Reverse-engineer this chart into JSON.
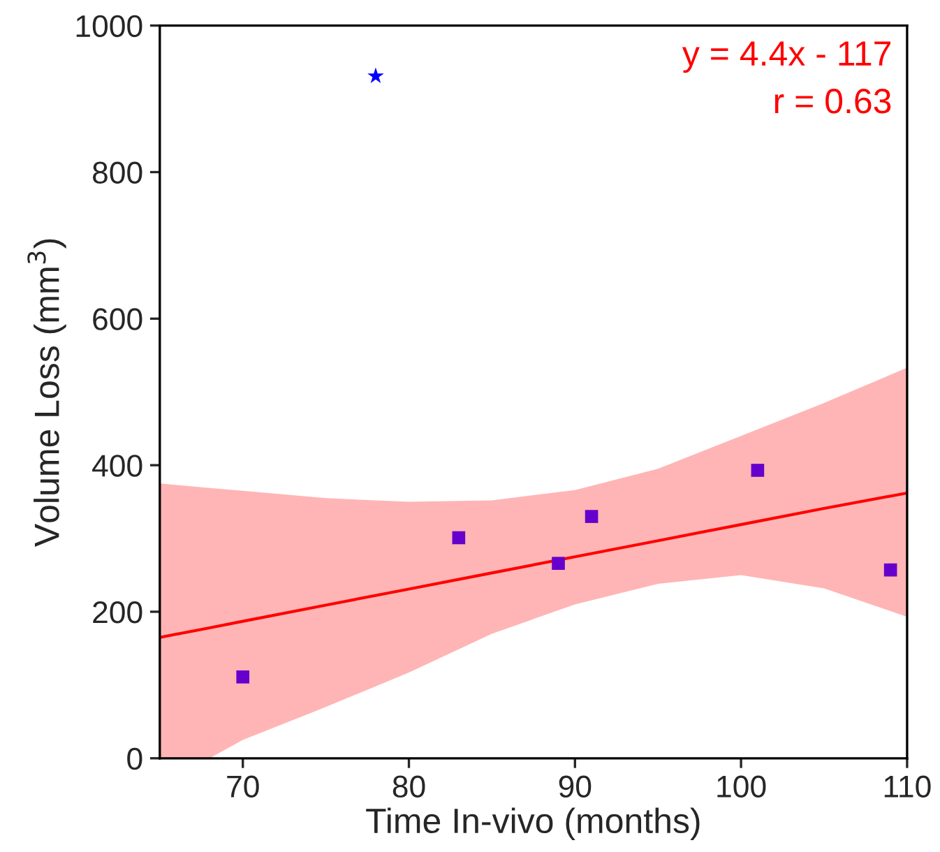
{
  "chart_data": {
    "type": "scatter",
    "xlabel": "Time In-vivo (months)",
    "ylabel": "Volume Loss (mm$^{3}$)",
    "xlim": [
      65,
      110
    ],
    "xticks": [
      70,
      80,
      90,
      100,
      110
    ],
    "ylim": [
      0,
      1000
    ],
    "yticks": [
      0,
      200,
      400,
      600,
      800,
      1000
    ],
    "grid": false,
    "legend": false,
    "annotations": [
      "y = 4.4x - 117",
      "r = 0.63"
    ],
    "series": [
      {
        "type": "line",
        "color": "#ff0000",
        "marker": "none",
        "line_style": "solid",
        "x": [
          65,
          68,
          70,
          75,
          80,
          85,
          90,
          95,
          100,
          105,
          110
        ],
        "values": [
          165,
          178,
          187,
          209,
          231,
          253,
          275,
          297,
          319,
          341,
          362
        ],
        "lower": [
          0,
          0,
          25,
          70,
          117,
          170,
          210,
          238,
          250,
          232,
          193
        ],
        "upper": [
          375,
          369,
          365,
          355,
          350,
          352,
          366,
          395,
          440,
          485,
          533
        ]
      },
      {
        "color": "#6600cc",
        "marker": "square",
        "x": [
          70,
          83,
          89,
          91,
          101,
          109
        ],
        "values": [
          111,
          301,
          266,
          330,
          393,
          257
        ]
      },
      {
        "color": "#0000ff",
        "marker": "star",
        "x": [
          78
        ],
        "values": [
          931
        ]
      }
    ]
  }
}
